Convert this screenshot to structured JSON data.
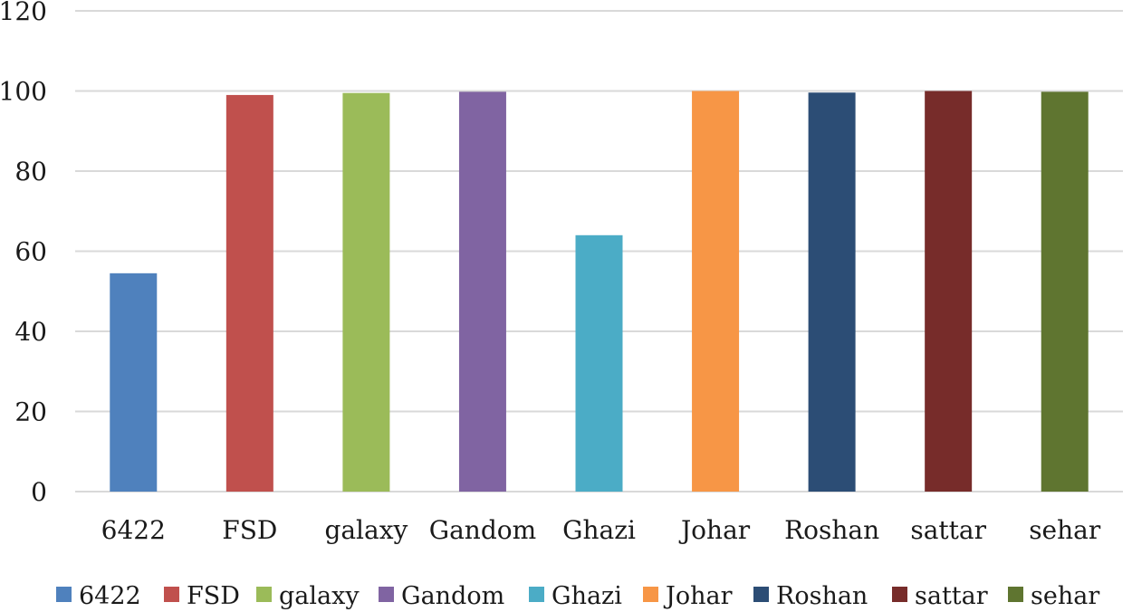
{
  "chart_data": {
    "type": "bar",
    "title": "",
    "xlabel": "",
    "ylabel": "",
    "categories": [
      "6422",
      "FSD",
      "galaxy",
      "Gandom",
      "Ghazi",
      "Johar",
      "Roshan",
      "sattar",
      "sehar"
    ],
    "values": [
      54.5,
      99,
      99.5,
      99.8,
      64,
      100,
      99.6,
      100,
      99.8
    ],
    "colors": [
      "#4f81bd",
      "#c0504d",
      "#9bbb59",
      "#8064a2",
      "#4bacc6",
      "#f79646",
      "#2c4d75",
      "#772c2a",
      "#5f7530"
    ],
    "ylim": [
      0,
      120
    ],
    "yticks": [
      0,
      20,
      40,
      60,
      80,
      100,
      120
    ],
    "grid": true,
    "legend": {
      "position": "bottom",
      "entries": [
        "6422",
        "FSD",
        "galaxy",
        "Gandom",
        "Ghazi",
        "Johar",
        "Roshan",
        "sattar",
        "sehar"
      ]
    }
  }
}
